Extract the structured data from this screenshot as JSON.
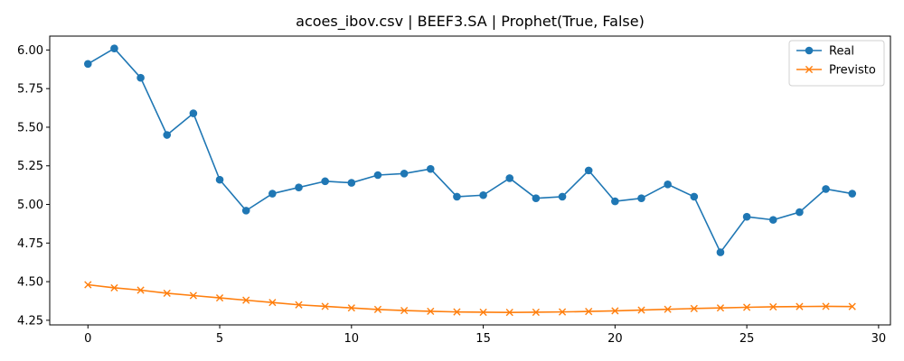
{
  "chart_data": {
    "type": "line",
    "title": "acoes_ibov.csv | BEEF3.SA | Prophet(True, False)",
    "xlabel": "",
    "ylabel": "",
    "xlim": [
      -1.45,
      30.45
    ],
    "ylim": [
      4.22,
      6.09
    ],
    "x_ticks": [
      0,
      5,
      10,
      15,
      20,
      25,
      30
    ],
    "x_tick_labels": [
      "0",
      "5",
      "10",
      "15",
      "20",
      "25",
      "30"
    ],
    "y_ticks": [
      4.25,
      4.5,
      4.75,
      5.0,
      5.25,
      5.5,
      5.75,
      6.0
    ],
    "y_tick_labels": [
      "4.25",
      "4.50",
      "4.75",
      "5.00",
      "5.25",
      "5.50",
      "5.75",
      "6.00"
    ],
    "grid": false,
    "legend_position": "top-right",
    "x": [
      0,
      1,
      2,
      3,
      4,
      5,
      6,
      7,
      8,
      9,
      10,
      11,
      12,
      13,
      14,
      15,
      16,
      17,
      18,
      19,
      20,
      21,
      22,
      23,
      24,
      25,
      26,
      27,
      28,
      29
    ],
    "series": [
      {
        "name": "Real",
        "color": "#1f77b4",
        "marker": "circle",
        "values": [
          5.91,
          6.01,
          5.82,
          5.45,
          5.59,
          5.16,
          4.96,
          5.07,
          5.11,
          5.15,
          5.14,
          5.19,
          5.2,
          5.23,
          5.05,
          5.06,
          5.17,
          5.04,
          5.05,
          5.22,
          5.02,
          5.04,
          5.13,
          5.05,
          4.69,
          4.92,
          4.9,
          4.95,
          5.1,
          5.07
        ]
      },
      {
        "name": "Previsto",
        "color": "#ff7f0e",
        "marker": "x",
        "values": [
          4.48,
          4.46,
          4.445,
          4.425,
          4.41,
          4.395,
          4.38,
          4.365,
          4.35,
          4.34,
          4.33,
          4.32,
          4.313,
          4.308,
          4.304,
          4.302,
          4.301,
          4.302,
          4.304,
          4.307,
          4.311,
          4.316,
          4.321,
          4.326,
          4.33,
          4.334,
          4.337,
          4.339,
          4.34,
          4.339
        ]
      }
    ]
  }
}
